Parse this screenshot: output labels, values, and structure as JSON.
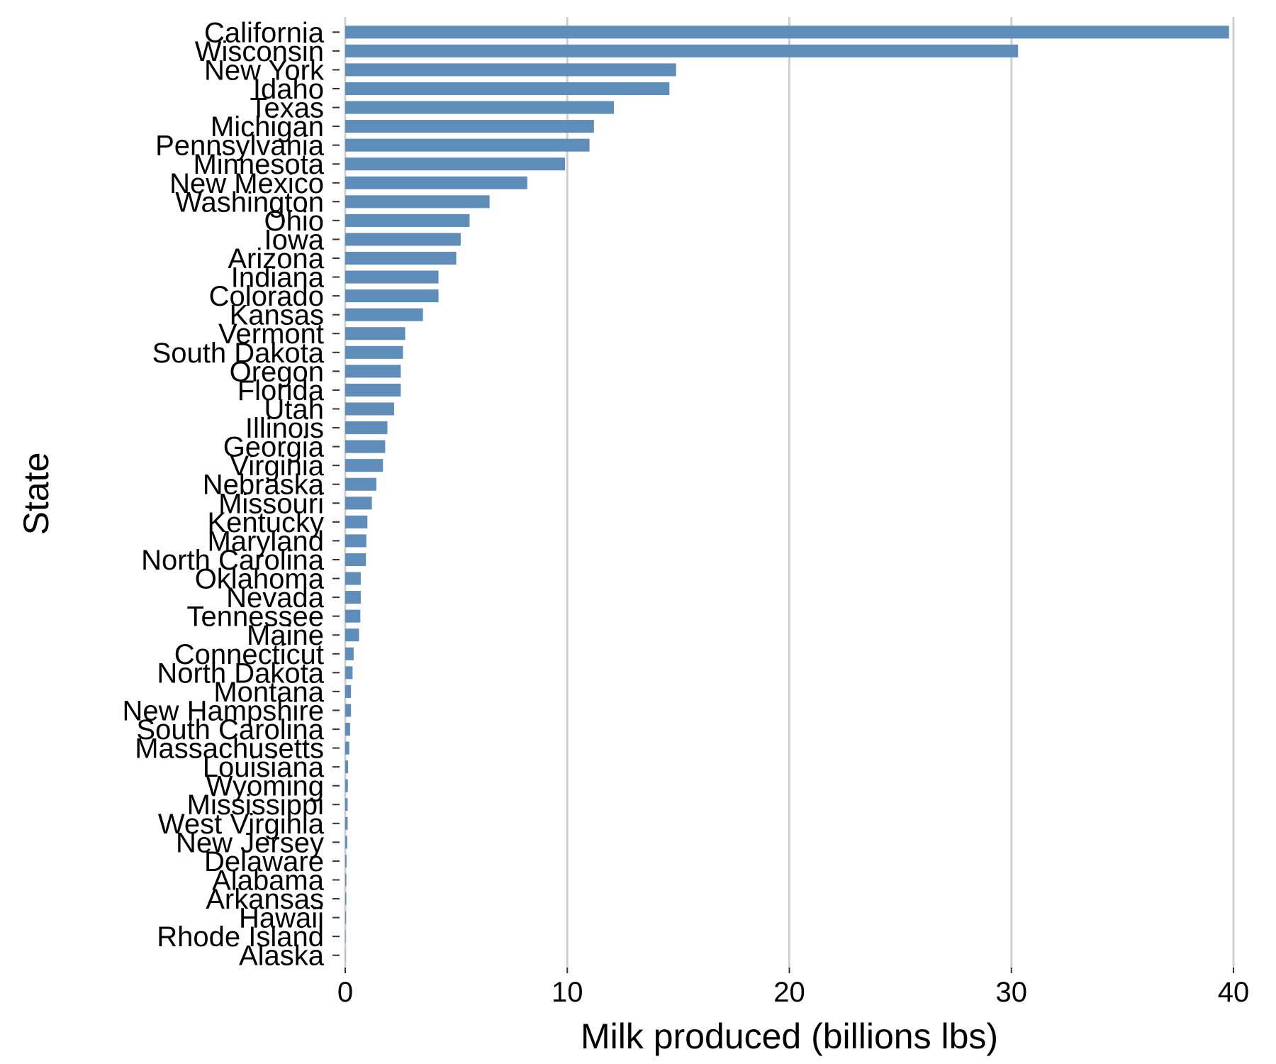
{
  "chart_data": {
    "type": "bar",
    "orientation": "horizontal",
    "xlabel": "Milk produced (billions lbs)",
    "ylabel": "State",
    "xlim": [
      0,
      40
    ],
    "xticks": [
      0,
      10,
      20,
      30,
      40
    ],
    "grid": "vertical",
    "bar_color": "#5f8dba",
    "categories": [
      "California",
      "Wisconsin",
      "New York",
      "Idaho",
      "Texas",
      "Michigan",
      "Pennsylvania",
      "Minnesota",
      "New Mexico",
      "Washington",
      "Ohio",
      "Iowa",
      "Arizona",
      "Indiana",
      "Colorado",
      "Kansas",
      "Vermont",
      "South Dakota",
      "Oregon",
      "Florida",
      "Utah",
      "Illinois",
      "Georgia",
      "Virginia",
      "Nebraska",
      "Missouri",
      "Kentucky",
      "Maryland",
      "North Carolina",
      "Oklahoma",
      "Nevada",
      "Tennessee",
      "Maine",
      "Connecticut",
      "North Dakota",
      "Montana",
      "New Hampshire",
      "South Carolina",
      "Massachusetts",
      "Louisiana",
      "Wyoming",
      "Mississippi",
      "West Virginia",
      "New Jersey",
      "Delaware",
      "Alabama",
      "Arkansas",
      "Hawaii",
      "Rhode Island",
      "Alaska"
    ],
    "values": [
      39.8,
      30.3,
      14.9,
      14.6,
      12.1,
      11.2,
      11.0,
      9.9,
      8.2,
      6.5,
      5.6,
      5.2,
      5.0,
      4.2,
      4.2,
      3.5,
      2.7,
      2.6,
      2.5,
      2.5,
      2.2,
      1.9,
      1.8,
      1.7,
      1.4,
      1.2,
      1.0,
      0.95,
      0.93,
      0.7,
      0.7,
      0.68,
      0.62,
      0.38,
      0.33,
      0.26,
      0.26,
      0.22,
      0.18,
      0.13,
      0.12,
      0.11,
      0.11,
      0.09,
      0.06,
      0.05,
      0.05,
      0.04,
      0.02,
      0.01
    ]
  }
}
